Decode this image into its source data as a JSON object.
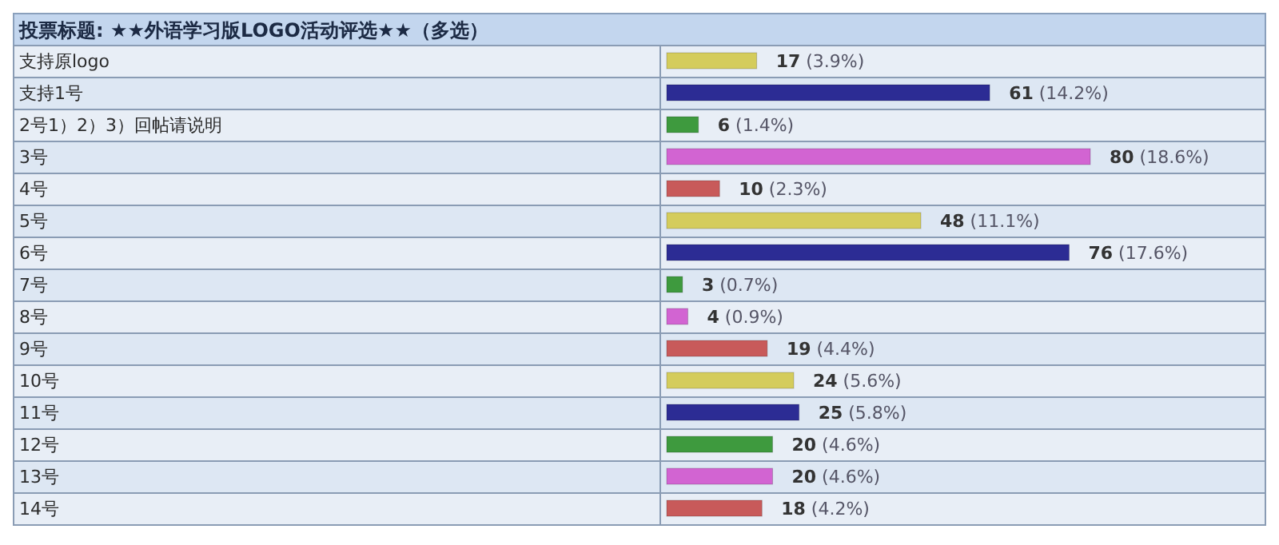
{
  "chart_data": {
    "type": "bar",
    "orientation": "horizontal",
    "title": "投票标题: ★★外语学习版LOGO活动评选★★（多选）",
    "categories": [
      "支持原logo",
      "支持1号",
      "2号1）2）3）回帖请说明",
      "3号",
      "4号",
      "5号",
      "6号",
      "7号",
      "8号",
      "9号",
      "10号",
      "11号",
      "12号",
      "13号",
      "14号"
    ],
    "values": [
      17,
      61,
      6,
      80,
      10,
      48,
      76,
      3,
      4,
      19,
      24,
      25,
      20,
      20,
      18
    ],
    "colors": [
      "#d4cc5c",
      "#2c2c94",
      "#3e9a3e",
      "#d264d2",
      "#c85a5a",
      "#d4cc5c",
      "#2c2c94",
      "#3e9a3e",
      "#d264d2",
      "#c85a5a",
      "#d4cc5c",
      "#2c2c94",
      "#3e9a3e",
      "#d264d2",
      "#c85a5a"
    ],
    "value_labels": [
      "17 (3.9%)",
      "61 (14.2%)",
      "6 (1.4%)",
      "80 (18.6%)",
      "10 (2.3%)",
      "48 (11.1%)",
      "76 (17.6%)",
      "3 (0.7%)",
      "4 (0.9%)",
      "19 (4.4%)",
      "24 (5.6%)",
      "25 (5.8%)",
      "20 (4.6%)",
      "20 (4.6%)",
      "18 (4.2%)"
    ]
  }
}
